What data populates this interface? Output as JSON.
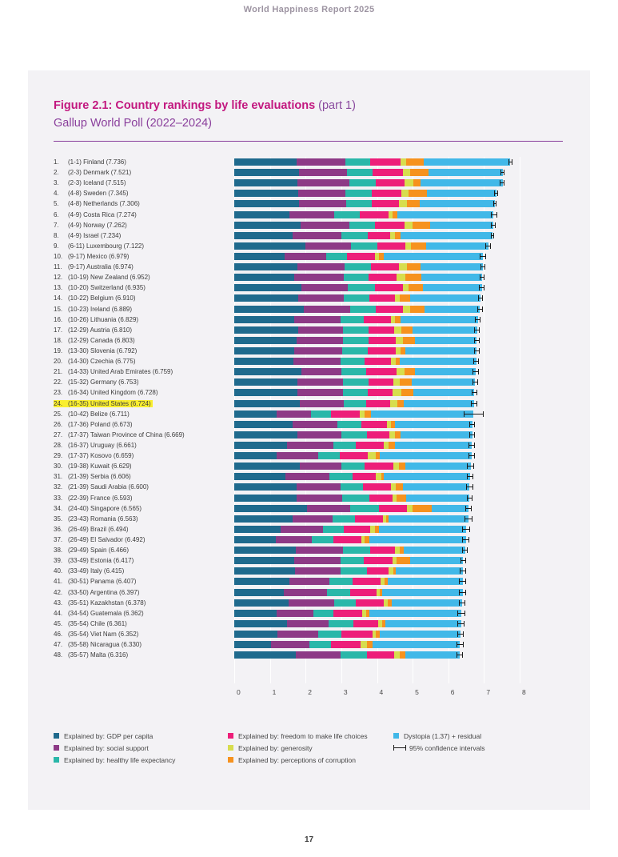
{
  "page": {
    "header": "World Happiness Report 2025",
    "page_number": "17"
  },
  "figure": {
    "title_main": "Figure 2.1: Country rankings by life evaluations",
    "title_part": " (part 1)",
    "subtitle": "Gallup World Poll (2022–2024)"
  },
  "colors": {
    "gdp": "#1f6a8d",
    "social": "#8d3a86",
    "health": "#2ab7a9",
    "freedom": "#ed1e79",
    "generosity": "#d7dd4e",
    "corruption": "#f6921e",
    "dystopia": "#41b8e8",
    "ci": "#1a1a1a",
    "highlight": "#f9ee2e",
    "title_magenta": "#c2177f",
    "purple": "#8a3f9c"
  },
  "legend": {
    "columns": [
      [
        {
          "key": "gdp",
          "label": "Explained by: GDP per capita"
        },
        {
          "key": "social",
          "label": "Explained by: social support"
        },
        {
          "key": "health",
          "label": "Explained by: healthy life expectancy"
        }
      ],
      [
        {
          "key": "freedom",
          "label": "Explained by: freedom to make life choices"
        },
        {
          "key": "generosity",
          "label": "Explained by: generosity"
        },
        {
          "key": "corruption",
          "label": "Explained by: perceptions of corruption"
        }
      ],
      [
        {
          "key": "dystopia",
          "label": "Dystopia (1.37) + residual"
        },
        {
          "key": "ci",
          "label": "95% confidence intervals"
        }
      ]
    ]
  },
  "chart_data": {
    "type": "bar",
    "orientation": "horizontal",
    "stacked": true,
    "xlim": [
      0,
      8
    ],
    "xticks": [
      0,
      1,
      2,
      3,
      4,
      5,
      6,
      7,
      8
    ],
    "segments": [
      "GDP per capita",
      "social support",
      "healthy life expectancy",
      "freedom to make life choices",
      "generosity",
      "perceptions of corruption",
      "Dystopia (1.37) + residual"
    ],
    "rows": [
      {
        "rank": "1",
        "range": "1-1",
        "country": "Finland",
        "score": "7.736",
        "values": [
          1.75,
          1.36,
          0.71,
          0.84,
          0.15,
          0.5,
          2.43
        ],
        "ci": 0.06,
        "highlight": false
      },
      {
        "rank": "2",
        "range": "2-3",
        "country": "Denmark",
        "score": "7.521",
        "values": [
          1.81,
          1.35,
          0.72,
          0.84,
          0.2,
          0.53,
          2.07
        ],
        "ci": 0.06,
        "highlight": false
      },
      {
        "rank": "3",
        "range": "2-3",
        "country": "Iceland",
        "score": "7.515",
        "values": [
          1.78,
          1.45,
          0.73,
          0.82,
          0.25,
          0.19,
          2.3
        ],
        "ci": 0.07,
        "highlight": false
      },
      {
        "rank": "4",
        "range": "4-8",
        "country": "Sweden",
        "score": "7.345",
        "values": [
          1.79,
          1.33,
          0.74,
          0.83,
          0.2,
          0.51,
          1.95
        ],
        "ci": 0.06,
        "highlight": false
      },
      {
        "rank": "5",
        "range": "4-8",
        "country": "Netherlands",
        "score": "7.306",
        "values": [
          1.81,
          1.32,
          0.73,
          0.76,
          0.21,
          0.38,
          2.1
        ],
        "ci": 0.05,
        "highlight": false
      },
      {
        "rank": "6",
        "range": "4-9",
        "country": "Costa Rica",
        "score": "7.274",
        "values": [
          1.54,
          1.27,
          0.71,
          0.81,
          0.11,
          0.13,
          2.7
        ],
        "ci": 0.09,
        "highlight": false
      },
      {
        "rank": "7",
        "range": "4-9",
        "country": "Norway",
        "score": "7.262",
        "values": [
          1.87,
          1.35,
          0.73,
          0.83,
          0.22,
          0.48,
          1.78
        ],
        "ci": 0.06,
        "highlight": false
      },
      {
        "rank": "8",
        "range": "4-9",
        "country": "Israel",
        "score": "7.234",
        "values": [
          1.64,
          1.36,
          0.74,
          0.62,
          0.15,
          0.16,
          2.56
        ],
        "ci": 0.05,
        "highlight": false
      },
      {
        "rank": "9",
        "range": "6-11",
        "country": "Luxembourg",
        "score": "7.122",
        "values": [
          2.0,
          1.27,
          0.74,
          0.79,
          0.16,
          0.42,
          1.74
        ],
        "ci": 0.08,
        "highlight": false
      },
      {
        "rank": "10",
        "range": "9-17",
        "country": "Mexico",
        "score": "6.979",
        "values": [
          1.42,
          1.16,
          0.59,
          0.78,
          0.11,
          0.14,
          2.78
        ],
        "ci": 0.09,
        "highlight": false
      },
      {
        "rank": "11",
        "range": "9-17",
        "country": "Australia",
        "score": "6.974",
        "values": [
          1.77,
          1.33,
          0.74,
          0.78,
          0.22,
          0.38,
          1.75
        ],
        "ci": 0.07,
        "highlight": false
      },
      {
        "rank": "12",
        "range": "10-19",
        "country": "New Zealand",
        "score": "6.952",
        "values": [
          1.69,
          1.37,
          0.71,
          0.79,
          0.23,
          0.46,
          1.7
        ],
        "ci": 0.07,
        "highlight": false
      },
      {
        "rank": "13",
        "range": "10-20",
        "country": "Switzerland",
        "score": "6.935",
        "values": [
          1.89,
          1.3,
          0.76,
          0.78,
          0.16,
          0.41,
          1.64
        ],
        "ci": 0.07,
        "highlight": false
      },
      {
        "rank": "14",
        "range": "10-22",
        "country": "Belgium",
        "score": "6.910",
        "values": [
          1.8,
          1.27,
          0.72,
          0.71,
          0.15,
          0.29,
          1.97
        ],
        "ci": 0.07,
        "highlight": false
      },
      {
        "rank": "15",
        "range": "10-23",
        "country": "Ireland",
        "score": "6.889",
        "values": [
          1.94,
          1.3,
          0.73,
          0.76,
          0.2,
          0.4,
          1.56
        ],
        "ci": 0.07,
        "highlight": false
      },
      {
        "rank": "16",
        "range": "10-26",
        "country": "Lithuania",
        "score": "6.829",
        "values": [
          1.67,
          1.32,
          0.64,
          0.76,
          0.11,
          0.16,
          2.17
        ],
        "ci": 0.08,
        "highlight": false
      },
      {
        "rank": "17",
        "range": "12-29",
        "country": "Austria",
        "score": "6.810",
        "values": [
          1.8,
          1.24,
          0.73,
          0.72,
          0.19,
          0.31,
          1.82
        ],
        "ci": 0.08,
        "highlight": false
      },
      {
        "rank": "18",
        "range": "12-29",
        "country": "Canada",
        "score": "6.803",
        "values": [
          1.75,
          1.29,
          0.72,
          0.76,
          0.21,
          0.34,
          1.73
        ],
        "ci": 0.08,
        "highlight": false
      },
      {
        "rank": "19",
        "range": "13-30",
        "country": "Slovenia",
        "score": "6.792",
        "values": [
          1.67,
          1.36,
          0.71,
          0.78,
          0.15,
          0.12,
          2.0
        ],
        "ci": 0.08,
        "highlight": false
      },
      {
        "rank": "20",
        "range": "14-30",
        "country": "Czechia",
        "score": "6.775",
        "values": [
          1.66,
          1.32,
          0.68,
          0.74,
          0.13,
          0.1,
          2.15
        ],
        "ci": 0.08,
        "highlight": false
      },
      {
        "rank": "21",
        "range": "14-33",
        "country": "United Arab Emirates",
        "score": "6.759",
        "values": [
          1.89,
          1.12,
          0.68,
          0.86,
          0.22,
          0.3,
          1.69
        ],
        "ci": 0.09,
        "highlight": false
      },
      {
        "rank": "22",
        "range": "15-32",
        "country": "Germany",
        "score": "6.753",
        "values": [
          1.78,
          1.26,
          0.72,
          0.7,
          0.17,
          0.34,
          1.78
        ],
        "ci": 0.08,
        "highlight": false
      },
      {
        "rank": "23",
        "range": "16-34",
        "country": "United Kingdom",
        "score": "6.728",
        "values": [
          1.76,
          1.28,
          0.71,
          0.69,
          0.25,
          0.32,
          1.72
        ],
        "ci": 0.08,
        "highlight": false
      },
      {
        "rank": "24",
        "range": "16-35",
        "country": "United States",
        "score": "6.724",
        "values": [
          1.83,
          1.25,
          0.62,
          0.66,
          0.22,
          0.17,
          1.97
        ],
        "ci": 0.08,
        "highlight": true
      },
      {
        "rank": "25",
        "range": "10-42",
        "country": "Belize",
        "score": "6.711",
        "values": [
          1.19,
          0.97,
          0.56,
          0.79,
          0.15,
          0.17,
          2.88
        ],
        "ci": 0.27,
        "highlight": false
      },
      {
        "rank": "26",
        "range": "17-36",
        "country": "Poland",
        "score": "6.673",
        "values": [
          1.63,
          1.25,
          0.68,
          0.72,
          0.11,
          0.12,
          2.16
        ],
        "ci": 0.08,
        "highlight": false
      },
      {
        "rank": "27",
        "range": "17-37",
        "country": "Taiwan Province of China",
        "score": "6.669",
        "values": [
          1.78,
          1.23,
          0.72,
          0.62,
          0.16,
          0.16,
          2.0
        ],
        "ci": 0.08,
        "highlight": false
      },
      {
        "rank": "28",
        "range": "16-37",
        "country": "Uruguay",
        "score": "6.661",
        "values": [
          1.49,
          1.28,
          0.63,
          0.8,
          0.12,
          0.19,
          2.15
        ],
        "ci": 0.09,
        "highlight": false
      },
      {
        "rank": "29",
        "range": "17-37",
        "country": "Kosovo",
        "score": "6.659",
        "values": [
          1.19,
          1.16,
          0.61,
          0.79,
          0.21,
          0.12,
          2.58
        ],
        "ci": 0.09,
        "highlight": false
      },
      {
        "rank": "30",
        "range": "19-38",
        "country": "Kuwait",
        "score": "6.629",
        "values": [
          1.84,
          1.16,
          0.66,
          0.81,
          0.14,
          0.19,
          1.83
        ],
        "ci": 0.1,
        "highlight": false
      },
      {
        "rank": "31",
        "range": "21-39",
        "country": "Serbia",
        "score": "6.606",
        "values": [
          1.44,
          1.22,
          0.65,
          0.66,
          0.16,
          0.07,
          2.41
        ],
        "ci": 0.09,
        "highlight": false
      },
      {
        "rank": "32",
        "range": "21-39",
        "country": "Saudi Arabia",
        "score": "6.600",
        "values": [
          1.75,
          1.23,
          0.62,
          0.79,
          0.13,
          0.2,
          1.88
        ],
        "ci": 0.1,
        "highlight": false
      },
      {
        "rank": "33",
        "range": "22-39",
        "country": "France",
        "score": "6.593",
        "values": [
          1.75,
          1.28,
          0.75,
          0.65,
          0.11,
          0.27,
          1.78
        ],
        "ci": 0.08,
        "highlight": false
      },
      {
        "rank": "34",
        "range": "24-40",
        "country": "Singapore",
        "score": "6.565",
        "values": [
          2.03,
          1.22,
          0.8,
          0.79,
          0.16,
          0.53,
          1.04
        ],
        "ci": 0.08,
        "highlight": false
      },
      {
        "rank": "35",
        "range": "23-43",
        "country": "Romania",
        "score": "6.563",
        "values": [
          1.63,
          1.12,
          0.64,
          0.77,
          0.09,
          0.07,
          2.24
        ],
        "ci": 0.11,
        "highlight": false
      },
      {
        "rank": "36",
        "range": "26-49",
        "country": "Brazil",
        "score": "6.494",
        "values": [
          1.3,
          1.18,
          0.6,
          0.73,
          0.13,
          0.12,
          2.43
        ],
        "ci": 0.11,
        "highlight": false
      },
      {
        "rank": "37",
        "range": "26-49",
        "country": "El Salvador",
        "score": "6.492",
        "values": [
          1.16,
          1.02,
          0.6,
          0.78,
          0.09,
          0.14,
          2.7
        ],
        "ci": 0.1,
        "highlight": false
      },
      {
        "rank": "38",
        "range": "29-49",
        "country": "Spain",
        "score": "6.466",
        "values": [
          1.72,
          1.32,
          0.77,
          0.69,
          0.13,
          0.13,
          1.71
        ],
        "ci": 0.08,
        "highlight": false
      },
      {
        "rank": "39",
        "range": "33-49",
        "country": "Estonia",
        "score": "6.417",
        "values": [
          1.69,
          1.29,
          0.66,
          0.79,
          0.13,
          0.36,
          1.5
        ],
        "ci": 0.08,
        "highlight": false
      },
      {
        "rank": "40",
        "range": "33-49",
        "country": "Italy",
        "score": "6.415",
        "values": [
          1.71,
          1.26,
          0.76,
          0.59,
          0.14,
          0.07,
          1.89
        ],
        "ci": 0.09,
        "highlight": false
      },
      {
        "rank": "41",
        "range": "30-51",
        "country": "Panama",
        "score": "6.407",
        "values": [
          1.54,
          1.12,
          0.65,
          0.79,
          0.12,
          0.08,
          2.11
        ],
        "ci": 0.1,
        "highlight": false
      },
      {
        "rank": "42",
        "range": "33-50",
        "country": "Argentina",
        "score": "6.397",
        "values": [
          1.39,
          1.22,
          0.64,
          0.73,
          0.1,
          0.07,
          2.25
        ],
        "ci": 0.1,
        "highlight": false
      },
      {
        "rank": "43",
        "range": "35-51",
        "country": "Kazakhstan",
        "score": "6.378",
        "values": [
          1.52,
          1.28,
          0.6,
          0.78,
          0.12,
          0.12,
          1.96
        ],
        "ci": 0.09,
        "highlight": false
      },
      {
        "rank": "44",
        "range": "34-54",
        "country": "Guatemala",
        "score": "6.362",
        "values": [
          1.18,
          1.04,
          0.56,
          0.8,
          0.12,
          0.09,
          2.57
        ],
        "ci": 0.11,
        "highlight": false
      },
      {
        "rank": "45",
        "range": "35-54",
        "country": "Chile",
        "score": "6.361",
        "values": [
          1.48,
          1.17,
          0.68,
          0.7,
          0.12,
          0.09,
          2.12
        ],
        "ci": 0.1,
        "highlight": false
      },
      {
        "rank": "46",
        "range": "35-54",
        "country": "Viet Nam",
        "score": "6.352",
        "values": [
          1.22,
          1.13,
          0.66,
          0.86,
          0.1,
          0.12,
          2.26
        ],
        "ci": 0.09,
        "highlight": false
      },
      {
        "rank": "47",
        "range": "35-58",
        "country": "Nicaragua",
        "score": "6.330",
        "values": [
          1.04,
          1.06,
          0.62,
          0.83,
          0.16,
          0.16,
          2.46
        ],
        "ci": 0.11,
        "highlight": false
      },
      {
        "rank": "48",
        "range": "35-57",
        "country": "Malta",
        "score": "6.316",
        "values": [
          1.73,
          1.25,
          0.74,
          0.76,
          0.17,
          0.14,
          1.53
        ],
        "ci": 0.09,
        "highlight": false
      }
    ]
  }
}
